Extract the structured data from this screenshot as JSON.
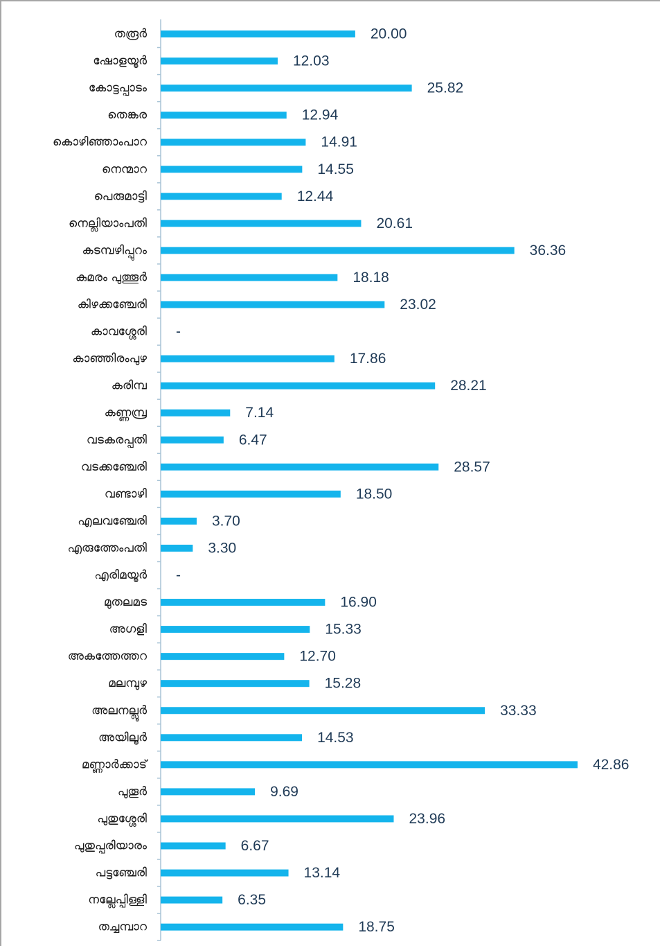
{
  "chart_data": {
    "type": "hbar",
    "categories": [
      "തരൂർ",
      "ഷോളയൂർ",
      "കോട്ടപ്പാടം",
      "തെങ്കര",
      "കൊഴിഞ്ഞാംപാറ",
      "നെന്മാറ",
      "പെരുമാട്ടി",
      "നെല്ലിയാംപതി",
      "കടമ്പഴിപ്പുറം",
      "കുമരം പുത്തൂർ",
      "കിഴക്കഞ്ചേരി",
      "കാവശ്ശേരി",
      "കാഞ്ഞിരംപുഴ",
      "കരിമ്പ",
      "കണ്ണമ്പ്ര",
      "വടകരപ്പതി",
      "വടക്കഞ്ചേരി",
      "വണ്ടാഴി",
      "എലവഞ്ചേരി",
      "എരുത്തേംപതി",
      "എരിമയൂർ",
      "മുതലമട",
      "അഗളി",
      "അകത്തേത്തറ",
      "മലമ്പുഴ",
      "അലനല്ലൂർ",
      "അയിലൂർ",
      "മണ്ണാർക്കാട്",
      "പുതൂർ",
      "പുതുശ്ശേരി",
      "പുതുപ്പരിയാരം",
      "പട്ടഞ്ചേരി",
      "നല്ലേപ്പിള്ളി",
      "തച്ചമ്പാറ"
    ],
    "values": [
      20.0,
      12.03,
      25.82,
      12.94,
      14.91,
      14.55,
      12.44,
      20.61,
      36.36,
      18.18,
      23.02,
      null,
      17.86,
      28.21,
      7.14,
      6.47,
      28.57,
      18.5,
      3.7,
      3.3,
      null,
      16.9,
      15.33,
      12.7,
      15.28,
      33.33,
      14.53,
      42.86,
      9.69,
      23.96,
      6.67,
      13.14,
      6.35,
      18.75
    ],
    "value_labels": [
      "20.00",
      "12.03",
      "25.82",
      "12.94",
      "14.91",
      "14.55",
      "12.44",
      "20.61",
      "36.36",
      "18.18",
      "23.02",
      "-",
      "17.86",
      "28.21",
      "7.14",
      "6.47",
      "28.57",
      "18.50",
      "3.70",
      "3.30",
      "-",
      "16.90",
      "15.33",
      "12.70",
      "15.28",
      "33.33",
      "14.53",
      "42.86",
      "9.69",
      "23.96",
      "6.67",
      "13.14",
      "6.35",
      "18.75"
    ],
    "color": "#14b4ec",
    "xlim": [
      0,
      45
    ]
  }
}
